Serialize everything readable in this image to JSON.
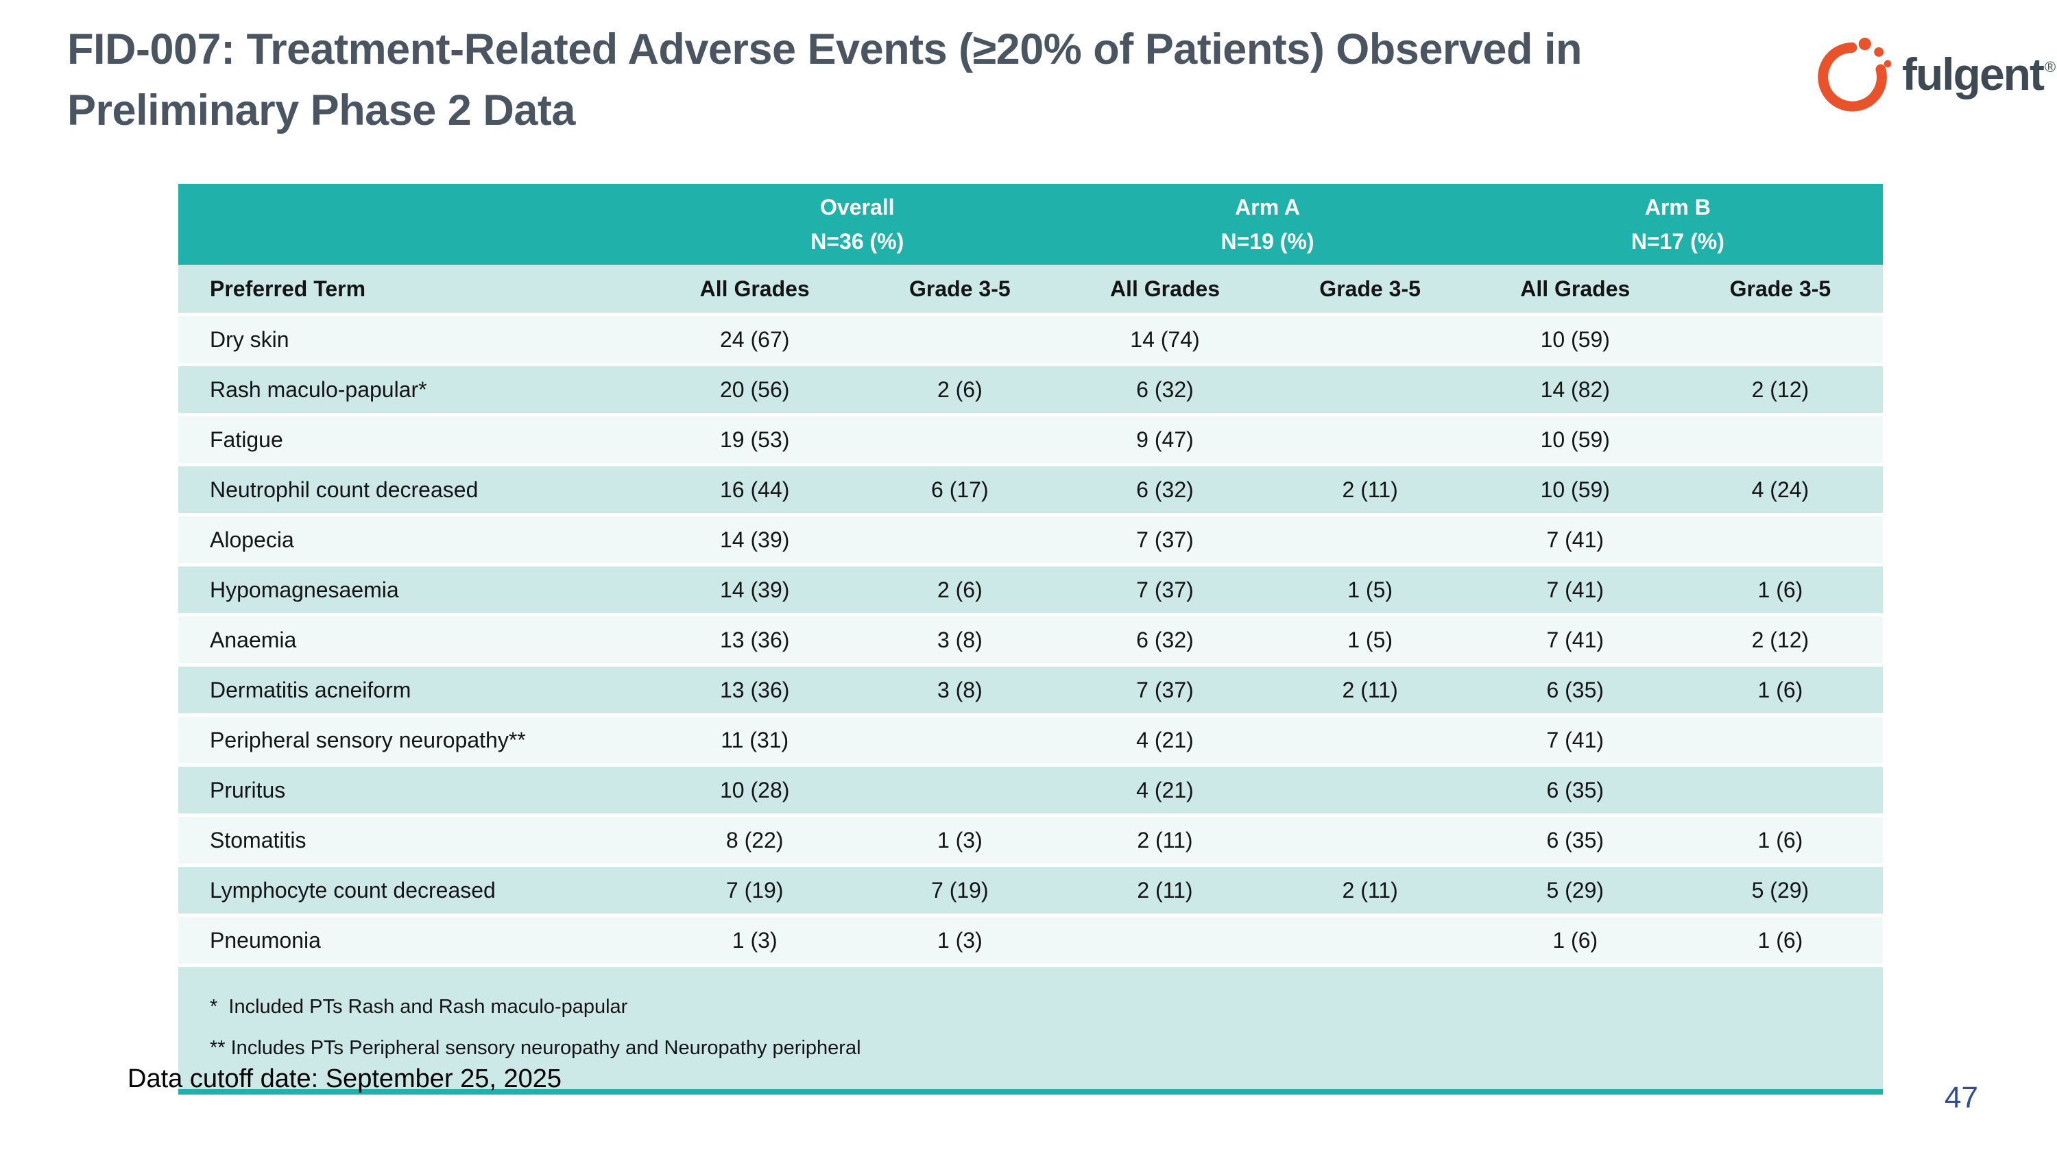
{
  "slide": {
    "title": "FID-007: Treatment-Related Adverse Events (≥20% of Patients) Observed in Preliminary Phase 2 Data",
    "data_cutoff": "Data cutoff date: September 25, 2025",
    "page_number": "47",
    "logo": {
      "wordmark": "fulgent",
      "registered": "®",
      "icon": "fulgent-arc-icon",
      "orange": "#e8532b",
      "gray": "#3e4954"
    },
    "colors": {
      "header_teal": "#21b1ab",
      "subheader_teal": "#cde9e7",
      "row_odd": "#f0f9f8",
      "row_even": "#cde9e7",
      "title_gray": "#4a5561",
      "page_number_blue": "#2e4e8f"
    }
  },
  "table": {
    "group_headers": [
      {
        "label": "Overall",
        "sub": "N=36 (%)"
      },
      {
        "label": "Arm A",
        "sub": "N=19 (%)"
      },
      {
        "label": "Arm B",
        "sub": "N=17 (%)"
      }
    ],
    "column_headers": [
      "Preferred Term",
      "All Grades",
      "Grade 3-5",
      "All Grades",
      "Grade 3-5",
      "All Grades",
      "Grade 3-5"
    ],
    "rows": [
      {
        "term": "Dry skin",
        "values": [
          "24 (67)",
          "",
          "14 (74)",
          "",
          "10 (59)",
          ""
        ]
      },
      {
        "term": "Rash maculo-papular*",
        "values": [
          "20 (56)",
          "2 (6)",
          "6 (32)",
          "",
          "14 (82)",
          "2 (12)"
        ]
      },
      {
        "term": "Fatigue",
        "values": [
          "19 (53)",
          "",
          "9 (47)",
          "",
          "10 (59)",
          ""
        ]
      },
      {
        "term": "Neutrophil count decreased",
        "values": [
          "16 (44)",
          "6 (17)",
          "6 (32)",
          "2 (11)",
          "10 (59)",
          "4 (24)"
        ]
      },
      {
        "term": "Alopecia",
        "values": [
          "14 (39)",
          "",
          "7 (37)",
          "",
          "7 (41)",
          ""
        ]
      },
      {
        "term": "Hypomagnesaemia",
        "values": [
          "14 (39)",
          "2 (6)",
          "7 (37)",
          "1 (5)",
          "7 (41)",
          "1 (6)"
        ]
      },
      {
        "term": "Anaemia",
        "values": [
          "13 (36)",
          "3 (8)",
          "6 (32)",
          "1 (5)",
          "7 (41)",
          "2 (12)"
        ]
      },
      {
        "term": "Dermatitis acneiform",
        "values": [
          "13 (36)",
          "3 (8)",
          "7 (37)",
          "2 (11)",
          "6 (35)",
          "1 (6)"
        ]
      },
      {
        "term": "Peripheral sensory neuropathy**",
        "values": [
          "11 (31)",
          "",
          "4 (21)",
          "",
          "7 (41)",
          ""
        ]
      },
      {
        "term": "Pruritus",
        "values": [
          "10 (28)",
          "",
          "4 (21)",
          "",
          "6 (35)",
          ""
        ]
      },
      {
        "term": "Stomatitis",
        "values": [
          "8 (22)",
          "1 (3)",
          "2 (11)",
          "",
          "6 (35)",
          "1 (6)"
        ]
      },
      {
        "term": "Lymphocyte count decreased",
        "values": [
          "7 (19)",
          "7 (19)",
          "2 (11)",
          "2 (11)",
          "5 (29)",
          "5 (29)"
        ]
      },
      {
        "term": "Pneumonia",
        "values": [
          "1 (3)",
          "1 (3)",
          "",
          "",
          "1 (6)",
          "1 (6)"
        ]
      }
    ],
    "footnotes": [
      "*  Included PTs Rash and Rash maculo-papular",
      "** Includes PTs Peripheral sensory neuropathy and Neuropathy peripheral"
    ]
  }
}
